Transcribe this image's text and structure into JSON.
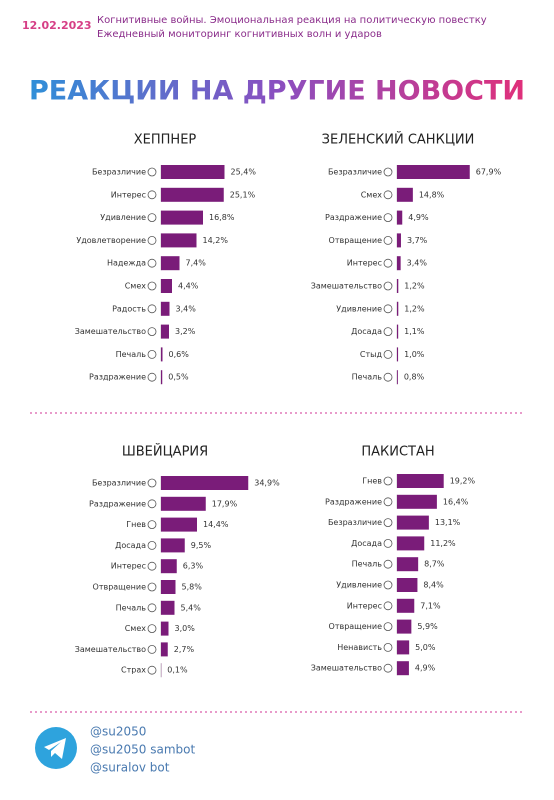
{
  "header": {
    "date": "12.02.2023",
    "subtitle_lines": [
      "Когнитивные войны. Эмоциональная реакция на политическую повестку",
      "Ежедневный мониторинг когнитивных волн и ударов"
    ],
    "title": "РЕАКЦИИ НА ДРУГИЕ НОВОСТИ"
  },
  "chart_data": [
    {
      "type": "bar",
      "orientation": "horizontal",
      "title": "ХЕППНЕР",
      "color": "#7a1c79",
      "xlim": [
        0,
        36
      ],
      "categories": [
        "Безразличие",
        "Интерес",
        "Удивление",
        "Удовлетворение",
        "Надежда",
        "Смех",
        "Радость",
        "Замешательство",
        "Печаль",
        "Раздражение"
      ],
      "values": [
        25.4,
        25.1,
        16.8,
        14.2,
        7.4,
        4.4,
        3.4,
        3.2,
        0.6,
        0.5
      ],
      "value_labels": [
        "25,4%",
        "25,1%",
        "16,8%",
        "14,2%",
        "7,4%",
        "4,4%",
        "3,4%",
        "3,2%",
        "0,6%",
        "0,5%"
      ]
    },
    {
      "type": "bar",
      "orientation": "horizontal",
      "title": "ЗЕЛЕНСКИЙ САНКЦИИ",
      "color": "#7a1c79",
      "xlim": [
        0,
        84
      ],
      "categories": [
        "Безразличие",
        "Смех",
        "Раздражение",
        "Отвращение",
        "Интерес",
        "Замешательство",
        "Удивление",
        "Досада",
        "Стыд",
        "Печаль"
      ],
      "values": [
        67.9,
        14.8,
        4.9,
        3.7,
        3.4,
        1.2,
        1.2,
        1.1,
        1.0,
        0.8
      ],
      "value_labels": [
        "67,9%",
        "14,8%",
        "4,9%",
        "3,7%",
        "3,4%",
        "1,2%",
        "1,2%",
        "1,1%",
        "1,0%",
        "0,8%"
      ]
    },
    {
      "type": "bar",
      "orientation": "horizontal",
      "title": "ШВЕЙЦАРИЯ",
      "color": "#7a1c79",
      "xlim": [
        0,
        36
      ],
      "categories": [
        "Безразличие",
        "Раздражение",
        "Гнев",
        "Досада",
        "Интерес",
        "Отвращение",
        "Печаль",
        "Смех",
        "Замешательство",
        "Страх"
      ],
      "values": [
        34.9,
        17.9,
        14.4,
        9.5,
        6.3,
        5.8,
        5.4,
        3.0,
        2.7,
        0.1
      ],
      "value_labels": [
        "34,9%",
        "17,9%",
        "14,4%",
        "9,5%",
        "6,3%",
        "5,8%",
        "5,4%",
        "3,0%",
        "2,7%",
        "0,1%"
      ]
    },
    {
      "type": "bar",
      "orientation": "horizontal",
      "title": "ПАКИСТАН",
      "color": "#7a1c79",
      "xlim": [
        0,
        37
      ],
      "categories": [
        "Гнев",
        "Раздражение",
        "Безразличие",
        "Досада",
        "Печаль",
        "Удивление",
        "Интерес",
        "Отвращение",
        "Ненависть",
        "Замешательство"
      ],
      "values": [
        19.2,
        16.4,
        13.1,
        11.2,
        8.7,
        8.4,
        7.1,
        5.9,
        5.0,
        4.9
      ],
      "value_labels": [
        "19,2%",
        "16,4%",
        "13,1%",
        "11,2%",
        "8,7%",
        "8,4%",
        "7,1%",
        "5,9%",
        "5,0%",
        "4,9%"
      ]
    }
  ],
  "footer": {
    "handles": [
      "@su2050",
      "@su2050 sambot",
      "@suralov bot"
    ]
  }
}
